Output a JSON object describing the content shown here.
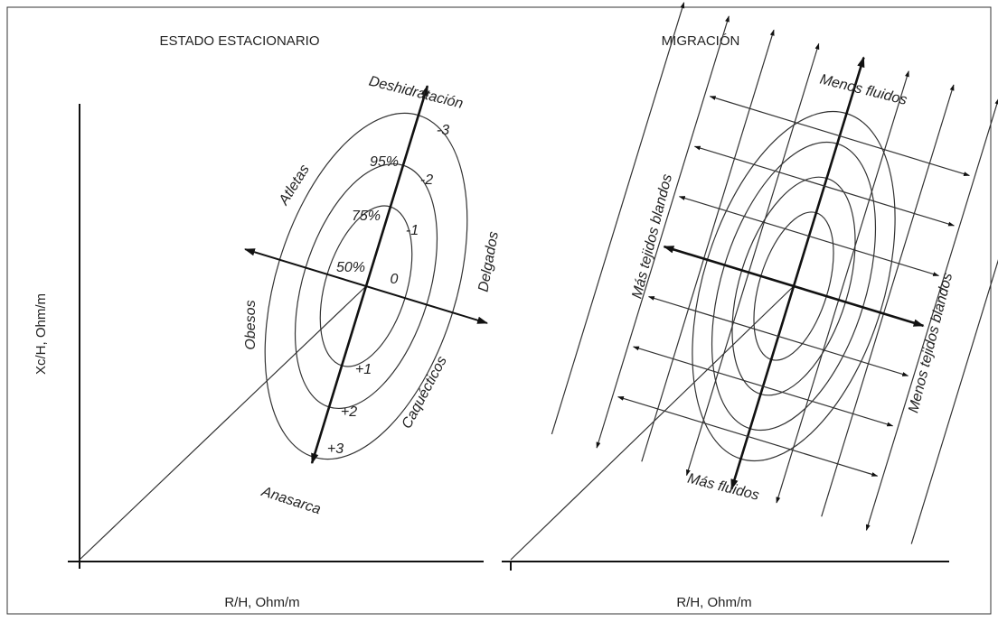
{
  "left_panel": {
    "title": "ESTADO ESTACIONARIO",
    "x_axis_label": "R/H, Ohm/m",
    "y_axis_label": "Xc/H, Ohm/m",
    "top_label": "Deshidratación",
    "bottom_label": "Anasarca",
    "upper_left_label": "Atletas",
    "lower_left_label": "Obesos",
    "upper_right_label": "Delgados",
    "lower_right_label": "Caquécticos",
    "percentiles": [
      "95%",
      "75%",
      "50%"
    ],
    "z_scores": [
      "-3",
      "-2",
      "-1",
      "0",
      "+1",
      "+2",
      "+3"
    ]
  },
  "right_panel": {
    "title": "MIGRACIÓN",
    "x_axis_label": "R/H, Ohm/m",
    "top_label": "Menos fluidos",
    "bottom_label": "Más fluidos",
    "left_label": "Más tejidos blandos",
    "right_label": "Menos tejidos blandos"
  }
}
